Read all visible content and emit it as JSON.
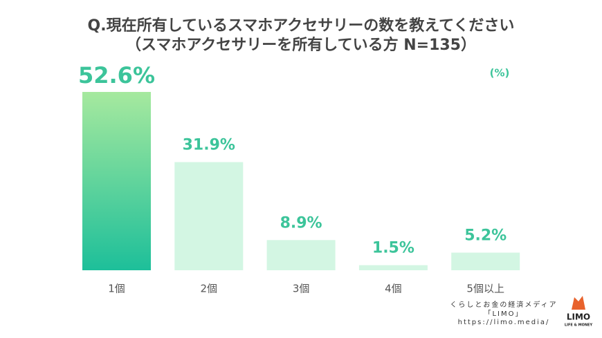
{
  "chart_data": {
    "type": "bar",
    "title": "Q.現在所有しているスマホアクセサリーの数を教えてください",
    "subtitle": "（スマホアクセサリーを所有している方 N=135）",
    "unit": "(%)",
    "categories": [
      "1個",
      "2個",
      "3個",
      "4個",
      "5個以上"
    ],
    "values": [
      52.6,
      31.9,
      8.9,
      1.5,
      5.2
    ],
    "value_labels": [
      "52.6%",
      "31.9%",
      "8.9%",
      "1.5%",
      "5.2%"
    ],
    "colors": [
      "#1dbf9a",
      "#d3f6e3",
      "#d3f6e3",
      "#d3f6e3",
      "#d3f6e3"
    ],
    "label_color": "#3cc49a"
  },
  "footer": {
    "tagline": "くらしとお金の経済メディア",
    "brand": "「LIMO」",
    "url": "https://limo.media/",
    "logo": "LIMO",
    "logo_sub": "LIFE & MONEY"
  }
}
